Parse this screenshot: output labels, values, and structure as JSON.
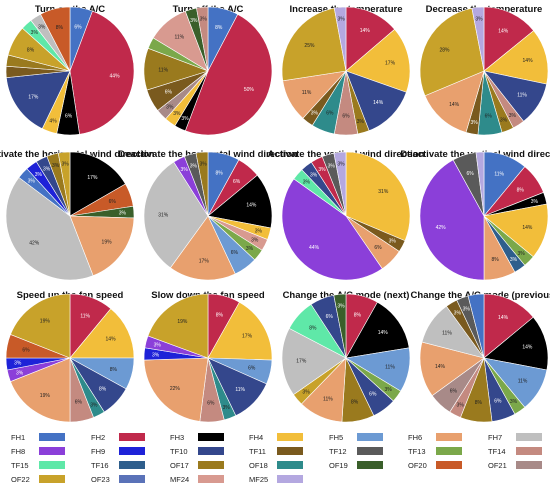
{
  "chart_data": {
    "type": "pie",
    "legend_position": "bottom",
    "legend": [
      {
        "label": "FH1",
        "color": "#4472C4"
      },
      {
        "label": "FH2",
        "color": "#C0294B"
      },
      {
        "label": "FH3",
        "color": "#000000"
      },
      {
        "label": "FH4",
        "color": "#F2BE3A"
      },
      {
        "label": "FH5",
        "color": "#6C9AD3"
      },
      {
        "label": "FH6",
        "color": "#E8A06E"
      },
      {
        "label": "FH7",
        "color": "#BFBFBF"
      },
      {
        "label": "FH8",
        "color": "#8B3FD9"
      },
      {
        "label": "FH9",
        "color": "#1E22D8"
      },
      {
        "label": "TF10",
        "color": "#34478C"
      },
      {
        "label": "TF11",
        "color": "#7A5A1E"
      },
      {
        "label": "TF12",
        "color": "#5A5A5A"
      },
      {
        "label": "TF13",
        "color": "#7BA84A"
      },
      {
        "label": "TF14",
        "color": "#C48A80"
      },
      {
        "label": "TF15",
        "color": "#5FE8A8"
      },
      {
        "label": "TF16",
        "color": "#2E5E8C"
      },
      {
        "label": "OF17",
        "color": "#9A7A1E"
      },
      {
        "label": "OF18",
        "color": "#2E8B8B"
      },
      {
        "label": "OF19",
        "color": "#3A5F2A"
      },
      {
        "label": "OF20",
        "color": "#C85A28"
      },
      {
        "label": "OF21",
        "color": "#A88A88"
      },
      {
        "label": "OF22",
        "color": "#C8A22A"
      },
      {
        "label": "OF23",
        "color": "#5A72B8"
      },
      {
        "label": "MF24",
        "color": "#D89A90"
      },
      {
        "label": "MF25",
        "color": "#B4A8E0"
      }
    ],
    "charts": [
      {
        "title": "Turn on the A/C",
        "slices": [
          {
            "c": 0,
            "v": 6,
            "label": "6%"
          },
          {
            "c": 1,
            "v": 44,
            "label": "44%"
          },
          {
            "c": 2,
            "v": 6,
            "label": "6%"
          },
          {
            "c": 3,
            "v": 4,
            "label": "4%"
          },
          {
            "c": 9,
            "v": 17,
            "label": "17%"
          },
          {
            "c": 10,
            "v": 3,
            "label": ""
          },
          {
            "c": 16,
            "v": 3,
            "label": ""
          },
          {
            "c": 21,
            "v": 8,
            "label": "8%"
          },
          {
            "c": 14,
            "v": 3,
            "label": "3%"
          },
          {
            "c": 6,
            "v": 3,
            "label": "3%"
          },
          {
            "c": 19,
            "v": 8,
            "label": "8%"
          }
        ]
      },
      {
        "title": "Turn off the A/C",
        "slices": [
          {
            "c": 0,
            "v": 8,
            "label": "8%"
          },
          {
            "c": 1,
            "v": 50,
            "label": "50%"
          },
          {
            "c": 2,
            "v": 3,
            "label": "3%"
          },
          {
            "c": 3,
            "v": 3,
            "label": "3%"
          },
          {
            "c": 20,
            "v": 3,
            "label": "3%"
          },
          {
            "c": 10,
            "v": 6,
            "label": "6%"
          },
          {
            "c": 16,
            "v": 11,
            "label": "11%"
          },
          {
            "c": 12,
            "v": 3,
            "label": ""
          },
          {
            "c": 23,
            "v": 11,
            "label": "11%"
          },
          {
            "c": 18,
            "v": 3,
            "label": "3%"
          },
          {
            "c": 13,
            "v": 3,
            "label": "3%"
          }
        ]
      },
      {
        "title": "Increase the temperature",
        "slices": [
          {
            "c": 1,
            "v": 14,
            "label": "14%"
          },
          {
            "c": 3,
            "v": 17,
            "label": "17%"
          },
          {
            "c": 9,
            "v": 14,
            "label": "14%"
          },
          {
            "c": 16,
            "v": 3,
            "label": "3%"
          },
          {
            "c": 13,
            "v": 6,
            "label": "6%"
          },
          {
            "c": 17,
            "v": 6,
            "label": "6%"
          },
          {
            "c": 10,
            "v": 3,
            "label": "3%"
          },
          {
            "c": 5,
            "v": 11,
            "label": "11%"
          },
          {
            "c": 21,
            "v": 25,
            "label": "25%"
          },
          {
            "c": 24,
            "v": 3,
            "label": "3%"
          }
        ]
      },
      {
        "title": "Decrease the temperature",
        "slices": [
          {
            "c": 1,
            "v": 14,
            "label": "14%"
          },
          {
            "c": 3,
            "v": 14,
            "label": "14%"
          },
          {
            "c": 9,
            "v": 11,
            "label": "11%"
          },
          {
            "c": 13,
            "v": 3,
            "label": "3%"
          },
          {
            "c": 16,
            "v": 3,
            "label": "3%"
          },
          {
            "c": 17,
            "v": 6,
            "label": "6%"
          },
          {
            "c": 10,
            "v": 3,
            "label": "3%"
          },
          {
            "c": 5,
            "v": 14,
            "label": "14%"
          },
          {
            "c": 21,
            "v": 28,
            "label": "28%"
          },
          {
            "c": 24,
            "v": 3,
            "label": "3%"
          }
        ]
      },
      {
        "title": "Activate the horizontal wind direction",
        "slices": [
          {
            "c": 2,
            "v": 17,
            "label": "17%"
          },
          {
            "c": 19,
            "v": 6,
            "label": "6%"
          },
          {
            "c": 18,
            "v": 3,
            "label": "3%"
          },
          {
            "c": 5,
            "v": 19,
            "label": "19%"
          },
          {
            "c": 6,
            "v": 42,
            "label": "42%"
          },
          {
            "c": 0,
            "v": 3,
            "label": "3%"
          },
          {
            "c": 8,
            "v": 3,
            "label": "3%"
          },
          {
            "c": 9,
            "v": 3,
            "label": "3%"
          },
          {
            "c": 16,
            "v": 3,
            "label": "3%"
          },
          {
            "c": 21,
            "v": 3,
            "label": "3%"
          }
        ]
      },
      {
        "title": "Deactivate the horizontal wind direction",
        "slices": [
          {
            "c": 0,
            "v": 8,
            "label": "8%"
          },
          {
            "c": 1,
            "v": 6,
            "label": "6%"
          },
          {
            "c": 2,
            "v": 14,
            "label": "14%"
          },
          {
            "c": 3,
            "v": 3,
            "label": "3%"
          },
          {
            "c": 23,
            "v": 3,
            "label": "3%"
          },
          {
            "c": 12,
            "v": 3,
            "label": "3%"
          },
          {
            "c": 4,
            "v": 6,
            "label": "6%"
          },
          {
            "c": 5,
            "v": 17,
            "label": "17%"
          },
          {
            "c": 6,
            "v": 31,
            "label": "31%"
          },
          {
            "c": 7,
            "v": 3,
            "label": "3%"
          },
          {
            "c": 11,
            "v": 3,
            "label": "3%"
          },
          {
            "c": 16,
            "v": 3,
            "label": "3%"
          }
        ]
      },
      {
        "title": "Activate the vertical wind direction",
        "slices": [
          {
            "c": 3,
            "v": 31,
            "label": "31%"
          },
          {
            "c": 10,
            "v": 3,
            "label": "3%"
          },
          {
            "c": 5,
            "v": 6,
            "label": "6%"
          },
          {
            "c": 7,
            "v": 44,
            "label": "44%"
          },
          {
            "c": 14,
            "v": 3,
            "label": "3%"
          },
          {
            "c": 9,
            "v": 3,
            "label": "3%"
          },
          {
            "c": 1,
            "v": 3,
            "label": "3%"
          },
          {
            "c": 11,
            "v": 3,
            "label": "3%"
          },
          {
            "c": 24,
            "v": 3,
            "label": "3%"
          }
        ]
      },
      {
        "title": "Deactivate the vertical wind direction",
        "slices": [
          {
            "c": 0,
            "v": 11,
            "label": "11%"
          },
          {
            "c": 1,
            "v": 8,
            "label": "8%"
          },
          {
            "c": 2,
            "v": 3,
            "label": "3%"
          },
          {
            "c": 3,
            "v": 14,
            "label": "14%"
          },
          {
            "c": 12,
            "v": 3,
            "label": "3%"
          },
          {
            "c": 15,
            "v": 3,
            "label": "3%"
          },
          {
            "c": 5,
            "v": 8,
            "label": "8%"
          },
          {
            "c": 7,
            "v": 42,
            "label": "42%"
          },
          {
            "c": 11,
            "v": 6,
            "label": "6%"
          },
          {
            "c": 24,
            "v": 2,
            "label": ""
          }
        ]
      },
      {
        "title": "Speed up the fan speed",
        "slices": [
          {
            "c": 1,
            "v": 11,
            "label": "11%"
          },
          {
            "c": 3,
            "v": 14,
            "label": "14%"
          },
          {
            "c": 4,
            "v": 8,
            "label": "8%"
          },
          {
            "c": 9,
            "v": 8,
            "label": "8%"
          },
          {
            "c": 17,
            "v": 3,
            "label": "3%"
          },
          {
            "c": 13,
            "v": 6,
            "label": "6%"
          },
          {
            "c": 5,
            "v": 19,
            "label": "19%"
          },
          {
            "c": 7,
            "v": 3,
            "label": "3%"
          },
          {
            "c": 8,
            "v": 3,
            "label": "3%"
          },
          {
            "c": 19,
            "v": 6,
            "label": "6%"
          },
          {
            "c": 21,
            "v": 19,
            "label": "19%"
          }
        ]
      },
      {
        "title": "Slow down the fan speed",
        "slices": [
          {
            "c": 1,
            "v": 8,
            "label": "8%"
          },
          {
            "c": 3,
            "v": 17,
            "label": "17%"
          },
          {
            "c": 4,
            "v": 6,
            "label": "6%"
          },
          {
            "c": 9,
            "v": 11,
            "label": "11%"
          },
          {
            "c": 17,
            "v": 3,
            "label": "3%"
          },
          {
            "c": 13,
            "v": 6,
            "label": "6%"
          },
          {
            "c": 5,
            "v": 22,
            "label": "22%"
          },
          {
            "c": 8,
            "v": 3,
            "label": "3%"
          },
          {
            "c": 7,
            "v": 3,
            "label": "3%"
          },
          {
            "c": 21,
            "v": 19,
            "label": "19%"
          }
        ]
      },
      {
        "title": "Change the A/C mode (next)",
        "slices": [
          {
            "c": 1,
            "v": 8,
            "label": "8%"
          },
          {
            "c": 2,
            "v": 14,
            "label": "14%"
          },
          {
            "c": 4,
            "v": 11,
            "label": "11%"
          },
          {
            "c": 12,
            "v": 3,
            "label": "3%"
          },
          {
            "c": 9,
            "v": 6,
            "label": "6%"
          },
          {
            "c": 16,
            "v": 8,
            "label": "8%"
          },
          {
            "c": 5,
            "v": 11,
            "label": "11%"
          },
          {
            "c": 21,
            "v": 3,
            "label": "3%"
          },
          {
            "c": 6,
            "v": 17,
            "label": "17%"
          },
          {
            "c": 14,
            "v": 8,
            "label": "8%"
          },
          {
            "c": 9,
            "v": 6,
            "label": "6%"
          },
          {
            "c": 18,
            "v": 3,
            "label": "3%"
          }
        ]
      },
      {
        "title": "Change the A/C mode (previous)",
        "slices": [
          {
            "c": 1,
            "v": 14,
            "label": "14%"
          },
          {
            "c": 2,
            "v": 14,
            "label": "14%"
          },
          {
            "c": 4,
            "v": 11,
            "label": "11%"
          },
          {
            "c": 12,
            "v": 3,
            "label": "3%"
          },
          {
            "c": 9,
            "v": 6,
            "label": "6%"
          },
          {
            "c": 16,
            "v": 8,
            "label": "8%"
          },
          {
            "c": 13,
            "v": 3,
            "label": "3%"
          },
          {
            "c": 20,
            "v": 6,
            "label": "6%"
          },
          {
            "c": 5,
            "v": 14,
            "label": "14%"
          },
          {
            "c": 6,
            "v": 11,
            "label": "11%"
          },
          {
            "c": 10,
            "v": 3,
            "label": "3%"
          },
          {
            "c": 11,
            "v": 3,
            "label": "3%"
          },
          {
            "c": 0,
            "v": 4,
            "label": ""
          }
        ]
      }
    ]
  }
}
